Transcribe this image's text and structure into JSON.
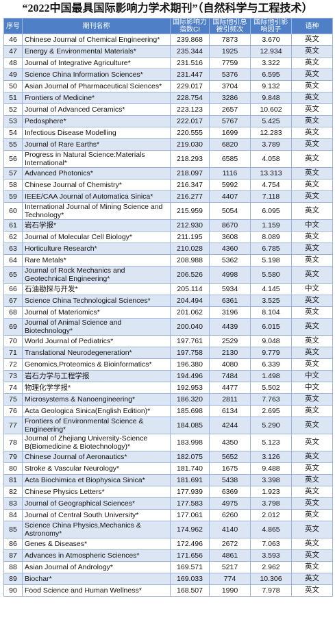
{
  "title": "“2022中国最具国际影响力学术期刊”（自然科学与工程技术）",
  "table": {
    "header": [
      "序号",
      "期刊名称",
      "国际影响力指数CI",
      "国际他引总被引频次",
      "国际他引影响因子",
      "语种"
    ],
    "rows": [
      [
        "46",
        "Chinese Journal of Chemical Engineering*",
        "239.868",
        "7873",
        "3.670",
        "英文"
      ],
      [
        "47",
        "Energy & Environmental Materials*",
        "235.344",
        "1925",
        "12.934",
        "英文"
      ],
      [
        "48",
        "Journal of Integrative Agriculture*",
        "231.516",
        "7759",
        "3.322",
        "英文"
      ],
      [
        "49",
        "Science China Information Sciences*",
        "231.447",
        "5376",
        "6.595",
        "英文"
      ],
      [
        "50",
        "Asian Journal of Pharmaceutical Sciences*",
        "229.017",
        "3704",
        "9.132",
        "英文"
      ],
      [
        "51",
        "Frontiers of Medicine*",
        "228.754",
        "3286",
        "9.848",
        "英文"
      ],
      [
        "52",
        "Journal of Advanced Ceramics*",
        "223.123",
        "2657",
        "10.602",
        "英文"
      ],
      [
        "53",
        "Pedosphere*",
        "222.017",
        "5767",
        "5.425",
        "英文"
      ],
      [
        "54",
        "Infectious Disease Modelling",
        "220.555",
        "1699",
        "12.283",
        "英文"
      ],
      [
        "55",
        "Journal of Rare Earths*",
        "219.030",
        "6820",
        "3.789",
        "英文"
      ],
      [
        "56",
        "Progress in Natural Science:Materials International*",
        "218.293",
        "6585",
        "4.058",
        "英文"
      ],
      [
        "57",
        "Advanced Photonics*",
        "218.097",
        "1116",
        "13.313",
        "英文"
      ],
      [
        "58",
        "Chinese Journal of Chemistry*",
        "216.347",
        "5992",
        "4.754",
        "英文"
      ],
      [
        "59",
        "IEEE/CAA Journal of Automatica Sinica*",
        "216.277",
        "4407",
        "7.118",
        "英文"
      ],
      [
        "60",
        "International Journal of Mining Science and Technology*",
        "215.959",
        "5054",
        "6.095",
        "英文"
      ],
      [
        "61",
        "岩石学报*",
        "212.930",
        "8670",
        "1.159",
        "中文"
      ],
      [
        "62",
        "Journal of Molecular Cell Biology*",
        "211.195",
        "3608",
        "8.089",
        "英文"
      ],
      [
        "63",
        "Horticulture Research*",
        "210.028",
        "4360",
        "6.785",
        "英文"
      ],
      [
        "64",
        "Rare Metals*",
        "208.988",
        "5362",
        "5.198",
        "英文"
      ],
      [
        "65",
        "Journal of Rock Mechanics and Geotechnical Engineering*",
        "206.526",
        "4998",
        "5.580",
        "英文"
      ],
      [
        "66",
        "石油勘探与开发*",
        "205.114",
        "5934",
        "4.145",
        "中文"
      ],
      [
        "67",
        "Science China Technological Sciences*",
        "204.494",
        "6361",
        "3.525",
        "英文"
      ],
      [
        "68",
        "Journal of Materiomics*",
        "201.062",
        "3196",
        "8.104",
        "英文"
      ],
      [
        "69",
        "Journal of Animal Science and Biotechnology*",
        "200.040",
        "4439",
        "6.015",
        "英文"
      ],
      [
        "70",
        "World Journal of Pediatrics*",
        "197.761",
        "2529",
        "9.048",
        "英文"
      ],
      [
        "71",
        "Translational Neurodegeneration*",
        "197.758",
        "2130",
        "9.779",
        "英文"
      ],
      [
        "72",
        "Genomics,Proteomics & Bioinformatics*",
        "196.380",
        "4080",
        "6.339",
        "英文"
      ],
      [
        "73",
        "岩石力学与工程学报",
        "194.496",
        "7484",
        "1.498",
        "中文"
      ],
      [
        "74",
        "物理化学学报*",
        "192.953",
        "4477",
        "5.502",
        "中文"
      ],
      [
        "75",
        "Microsystems & Nanoengineering*",
        "186.320",
        "2811",
        "7.763",
        "英文"
      ],
      [
        "76",
        "Acta Geologica Sinica(English Edition)*",
        "185.698",
        "6134",
        "2.695",
        "英文"
      ],
      [
        "77",
        "Frontiers of Environmental Science & Engineering*",
        "184.085",
        "4244",
        "5.290",
        "英文"
      ],
      [
        "78",
        "Journal of Zhejiang University-Science B(Biomedicine & Biotechnology)*",
        "183.998",
        "4350",
        "5.123",
        "英文"
      ],
      [
        "79",
        "Chinese Journal of Aeronautics*",
        "182.075",
        "5652",
        "3.126",
        "英文"
      ],
      [
        "80",
        "Stroke & Vascular Neurology*",
        "181.740",
        "1675",
        "9.488",
        "英文"
      ],
      [
        "81",
        "Acta Biochimica et Biophysica Sinica*",
        "181.691",
        "5438",
        "3.398",
        "英文"
      ],
      [
        "82",
        "Chinese Physics Letters*",
        "177.939",
        "6369",
        "1.923",
        "英文"
      ],
      [
        "83",
        "Journal of Geographical Sciences*",
        "177.583",
        "4975",
        "3.798",
        "英文"
      ],
      [
        "84",
        "Journal of Central South University*",
        "177.061",
        "6260",
        "2.012",
        "英文"
      ],
      [
        "85",
        "Science China Physics,Mechanics & Astronomy*",
        "174.962",
        "4140",
        "4.865",
        "英文"
      ],
      [
        "86",
        "Genes & Diseases*",
        "172.496",
        "2672",
        "7.063",
        "英文"
      ],
      [
        "87",
        "Advances in Atmospheric Sciences*",
        "171.656",
        "4861",
        "3.593",
        "英文"
      ],
      [
        "88",
        "Asian Journal of Andrology*",
        "169.571",
        "5217",
        "2.962",
        "英文"
      ],
      [
        "89",
        "Biochar*",
        "169.033",
        "774",
        "10.306",
        "英文"
      ],
      [
        "90",
        "Food Science and Human Wellness*",
        "168.507",
        "1990",
        "7.978",
        "英文"
      ]
    ]
  }
}
